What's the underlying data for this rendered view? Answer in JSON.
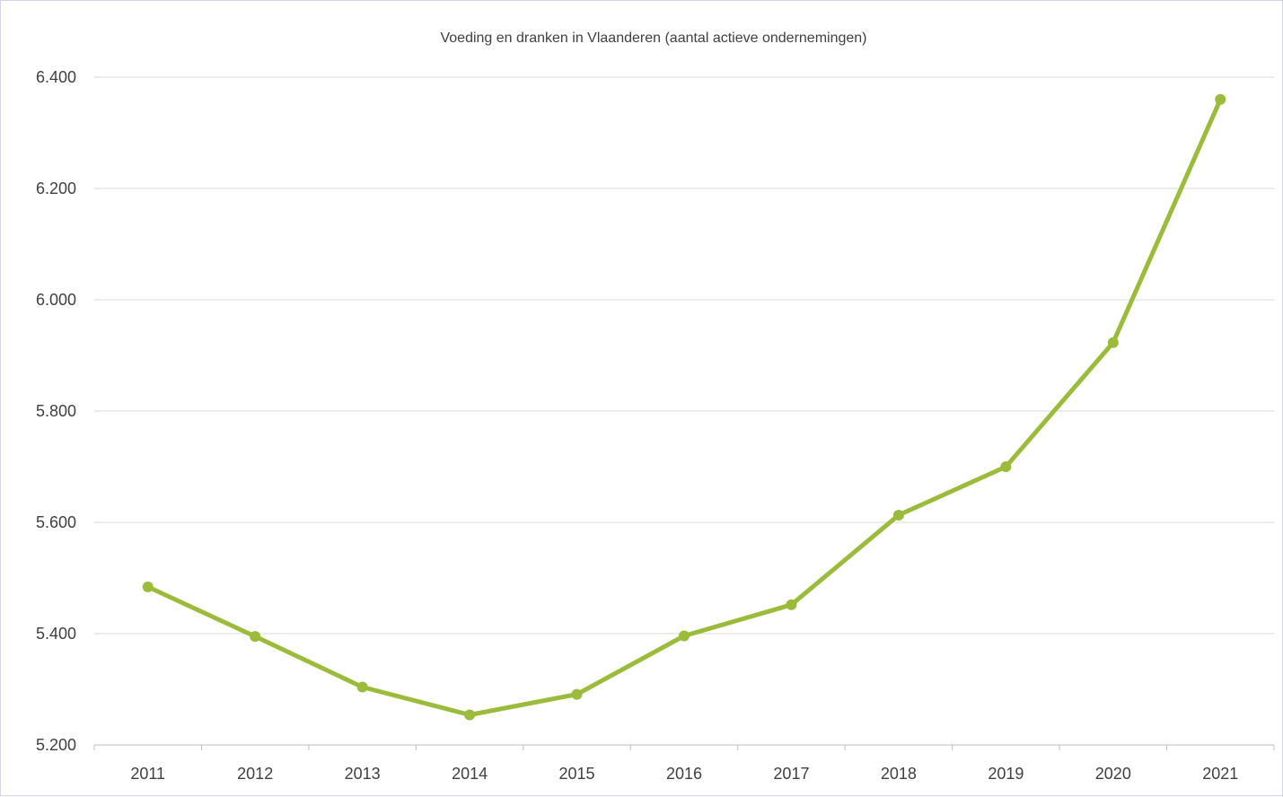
{
  "chart_data": {
    "type": "line",
    "title": "Voeding en dranken in Vlaanderen (aantal actieve ondernemingen)",
    "xlabel": "",
    "ylabel": "",
    "categories": [
      "2011",
      "2012",
      "2013",
      "2014",
      "2015",
      "2016",
      "2017",
      "2018",
      "2019",
      "2020",
      "2021"
    ],
    "series": [
      {
        "values": [
          5484,
          5395,
          5304,
          5254,
          5291,
          5396,
          5452,
          5613,
          5700,
          5923,
          6360
        ]
      }
    ],
    "ylim": [
      5200,
      6400
    ],
    "yticks": [
      5200,
      5400,
      5600,
      5800,
      6000,
      6200,
      6400
    ],
    "ytick_labels": [
      "5.200",
      "5.400",
      "5.600",
      "5.800",
      "6.000",
      "6.200",
      "6.400"
    ],
    "grid": "horizontal",
    "legend": "none",
    "line_color": "#9bbb3b"
  }
}
